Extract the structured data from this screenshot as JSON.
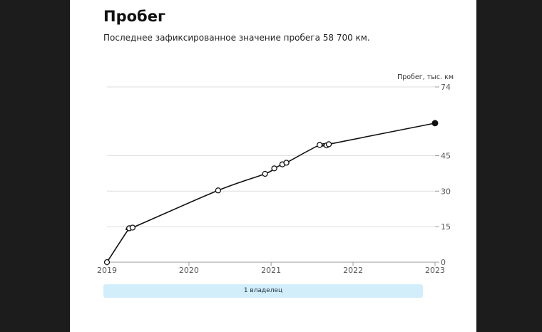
{
  "header": {
    "title": "Пробег",
    "subtitle": "Последнее зафиксированное значение пробега 58 700 км."
  },
  "owners": {
    "label": "1 владелец"
  },
  "colors": {
    "page_background": "#1c1c1c",
    "card_background": "#ffffff",
    "line": "#111111",
    "grid": "#dddddd",
    "owners_bar": "#d2eefa"
  },
  "chart_data": {
    "type": "line",
    "ylabel": "Пробег, тыс. км",
    "xlabel": "",
    "x_ticks": [
      "2019",
      "2020",
      "2021",
      "2022",
      "2023"
    ],
    "y_ticks": [
      0,
      15,
      30,
      45,
      74
    ],
    "ylim": [
      0,
      74
    ],
    "xlim": [
      "2019-01-01",
      "2023-01-01"
    ],
    "grid": true,
    "series": [
      {
        "points": [
          {
            "x": "2019-01-01",
            "y": 0
          },
          {
            "x": "2019-04-10",
            "y": 14.3
          },
          {
            "x": "2019-04-25",
            "y": 14.6
          },
          {
            "x": "2020-05-10",
            "y": 30.3
          },
          {
            "x": "2020-12-05",
            "y": 37.3
          },
          {
            "x": "2021-01-15",
            "y": 39.6
          },
          {
            "x": "2021-02-20",
            "y": 41.3
          },
          {
            "x": "2021-03-10",
            "y": 42.0
          },
          {
            "x": "2021-08-05",
            "y": 49.5
          },
          {
            "x": "2021-09-05",
            "y": 49.3
          },
          {
            "x": "2021-09-15",
            "y": 49.8
          },
          {
            "x": "2023-01-01",
            "y": 58.7
          }
        ]
      }
    ]
  }
}
